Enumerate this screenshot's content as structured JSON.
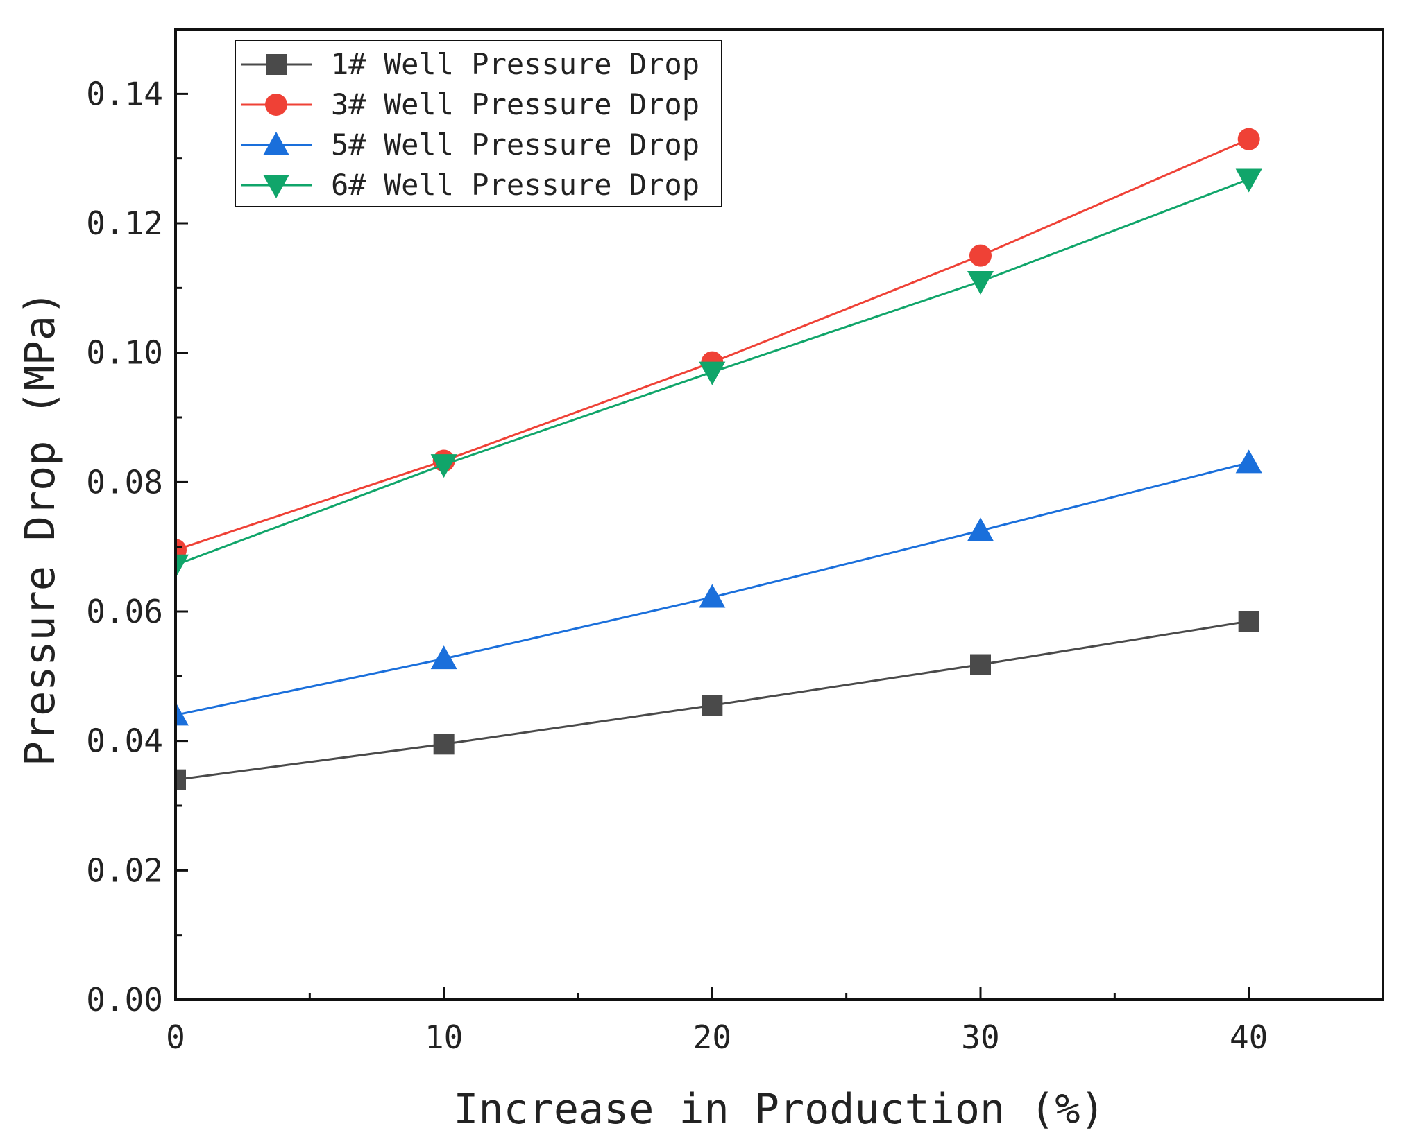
{
  "chart_data": {
    "type": "line",
    "title": "",
    "xlabel": "Increase in Production (%)",
    "ylabel": "Pressure Drop (MPa)",
    "xlim": [
      0,
      45
    ],
    "ylim": [
      0,
      0.15
    ],
    "x_ticks": [
      0,
      10,
      20,
      30,
      40
    ],
    "x_tick_labels": [
      "0",
      "10",
      "20",
      "30",
      "40"
    ],
    "y_ticks": [
      0,
      0.02,
      0.04,
      0.06,
      0.08,
      0.1,
      0.12,
      0.14
    ],
    "y_tick_labels": [
      "0.00",
      "0.02",
      "0.04",
      "0.06",
      "0.08",
      "0.10",
      "0.12",
      "0.14"
    ],
    "x": [
      0,
      10,
      20,
      30,
      40
    ],
    "legend_position": "top-left",
    "series": [
      {
        "name": "1# Well Pressure Drop",
        "marker": "square",
        "color": "#4a4a4a",
        "values": [
          0.034,
          0.0395,
          0.0455,
          0.0518,
          0.0585
        ]
      },
      {
        "name": "3# Well Pressure Drop",
        "marker": "circle",
        "color": "#ef4136",
        "values": [
          0.0695,
          0.0833,
          0.0985,
          0.115,
          0.133
        ]
      },
      {
        "name": "5# Well Pressure Drop",
        "marker": "triangle-up",
        "color": "#1a6fdb",
        "values": [
          0.044,
          0.0527,
          0.0622,
          0.0725,
          0.083
        ]
      },
      {
        "name": "6# Well Pressure Drop",
        "marker": "triangle-down",
        "color": "#10a56a",
        "values": [
          0.0672,
          0.0827,
          0.097,
          0.111,
          0.1268
        ]
      }
    ]
  }
}
